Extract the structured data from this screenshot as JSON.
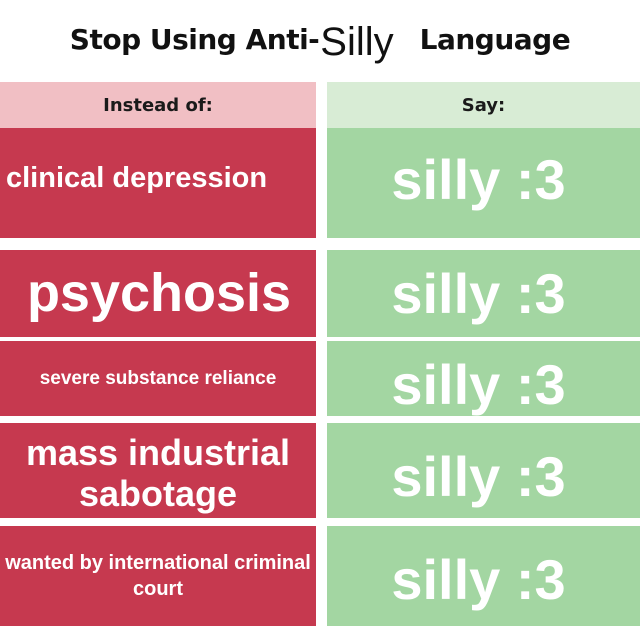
{
  "title": {
    "part1": "Stop Using Anti-",
    "part2": "Silly",
    "part3": "Language"
  },
  "headers": {
    "left": "Instead of:",
    "right": "Say:"
  },
  "rows": [
    {
      "instead": "clinical depression",
      "say": "silly :3"
    },
    {
      "instead": "psychosis",
      "say": "silly :3"
    },
    {
      "instead": "severe substance reliance",
      "say": "silly :3"
    },
    {
      "instead": "mass industrial sabotage",
      "say": "silly :3"
    },
    {
      "instead": "wanted by international criminal court",
      "say": "silly :3"
    }
  ],
  "colors": {
    "red_cell": "#c6394f",
    "red_header": "#f1bfc4",
    "green_cell": "#a3d6a2",
    "green_header": "#d8ecd5"
  }
}
